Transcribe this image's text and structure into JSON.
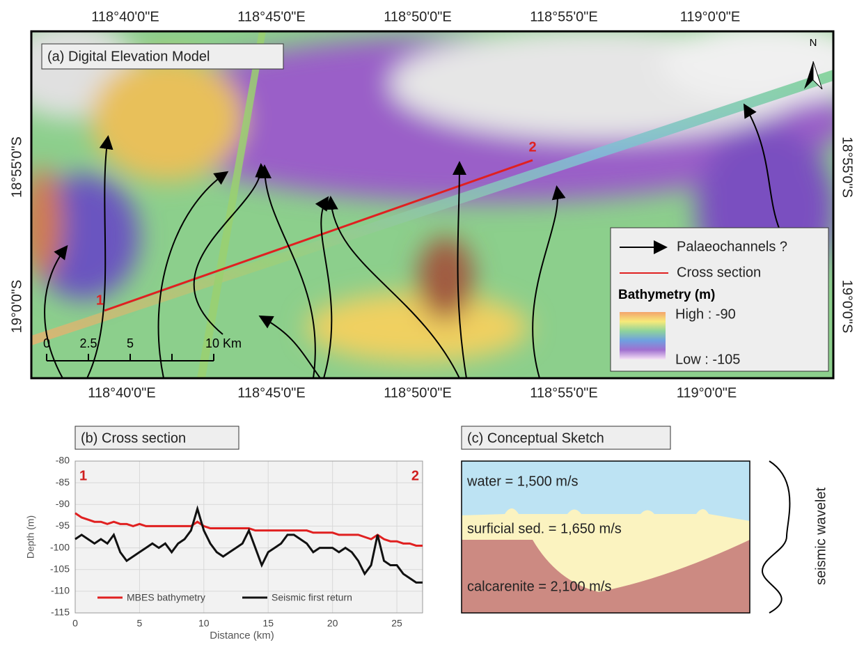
{
  "map": {
    "title": "(a) Digital Elevation Model",
    "north": "N",
    "top_labels": [
      "118°40'0\"E",
      "118°45'0\"E",
      "118°50'0\"E",
      "118°55'0\"E",
      "119°0'0\"E"
    ],
    "bottom_labels": [
      "118°40'0\"E",
      "118°45'0\"E",
      "118°50'0\"E",
      "118°55'0\"E",
      "119°0'0\"E"
    ],
    "left_labels": [
      "18°55'0\"S",
      "19°0'0\"S"
    ],
    "right_labels": [
      "18°55'0\"S",
      "19°0'0\"S"
    ],
    "points": [
      "1",
      "2"
    ],
    "scale_labels": [
      "0",
      "2.5",
      "5",
      "10 Km"
    ],
    "legend": {
      "items": [
        "Palaeochannels ?",
        "Cross section"
      ],
      "title": "Bathymetry (m)",
      "high": "High : -90",
      "low": "Low : -105"
    }
  },
  "chart_data": {
    "type": "line",
    "title": "(b) Cross section",
    "xlabel": "Distance (km)",
    "ylabel": "Depth (m)",
    "annotations": [
      "1",
      "2"
    ],
    "x": [
      0,
      0.5,
      1,
      1.5,
      2,
      2.5,
      3,
      3.5,
      4,
      4.5,
      5,
      5.5,
      6,
      6.5,
      7,
      7.5,
      8,
      8.5,
      9,
      9.5,
      10,
      10.5,
      11,
      11.5,
      12,
      12.5,
      13,
      13.5,
      14,
      14.5,
      15,
      15.5,
      16,
      16.5,
      17,
      17.5,
      18,
      18.5,
      19,
      19.5,
      20,
      20.5,
      21,
      21.5,
      22,
      22.5,
      23,
      23.5,
      24,
      24.5,
      25,
      25.5,
      26,
      26.5,
      27
    ],
    "series": [
      {
        "name": "MBES bathymetry",
        "color": "#e02020",
        "values": [
          -92,
          -93,
          -93.5,
          -94,
          -94,
          -94.5,
          -94,
          -94.5,
          -94.5,
          -95,
          -94.5,
          -95,
          -95,
          -95,
          -95,
          -95,
          -95,
          -95,
          -95,
          -94,
          -95,
          -95.5,
          -95.5,
          -95.5,
          -95.5,
          -95.5,
          -95.5,
          -95.5,
          -96,
          -96,
          -96,
          -96,
          -96,
          -96,
          -96,
          -96,
          -96,
          -96.5,
          -96.5,
          -96.5,
          -96.5,
          -97,
          -97,
          -97,
          -97,
          -97.5,
          -98,
          -97,
          -98,
          -98.5,
          -98.5,
          -99,
          -99,
          -99.5,
          -99.5
        ]
      },
      {
        "name": "Seismic first return",
        "color": "#111111",
        "values": [
          -98,
          -97,
          -98,
          -99,
          -98,
          -99,
          -97,
          -101,
          -103,
          -102,
          -101,
          -100,
          -99,
          -100,
          -99,
          -101,
          -99,
          -98,
          -96,
          -91,
          -96,
          -99,
          -101,
          -102,
          -101,
          -100,
          -99,
          -96,
          -100,
          -104,
          -101,
          -100,
          -99,
          -97,
          -97,
          -98,
          -99,
          -101,
          -100,
          -100,
          -100,
          -101,
          -100,
          -101,
          -103,
          -106,
          -104,
          -97,
          -103,
          -104,
          -104,
          -106,
          -107,
          -108,
          -108
        ]
      }
    ],
    "xlim": [
      0,
      27
    ],
    "xticks": [
      0,
      5,
      10,
      15,
      20,
      25
    ],
    "ylim": [
      -115,
      -80
    ],
    "yticks": [
      -115,
      -110,
      -105,
      -100,
      -95,
      -90,
      -85,
      -80
    ],
    "grid": true
  },
  "sketch": {
    "title": "(c) Conceptual Sketch",
    "layers": [
      "water = 1,500 m/s",
      "surficial sed. = 1,650 m/s",
      "calcarenite = 2,100 m/s"
    ],
    "wavelet": "seismic wavelet"
  }
}
